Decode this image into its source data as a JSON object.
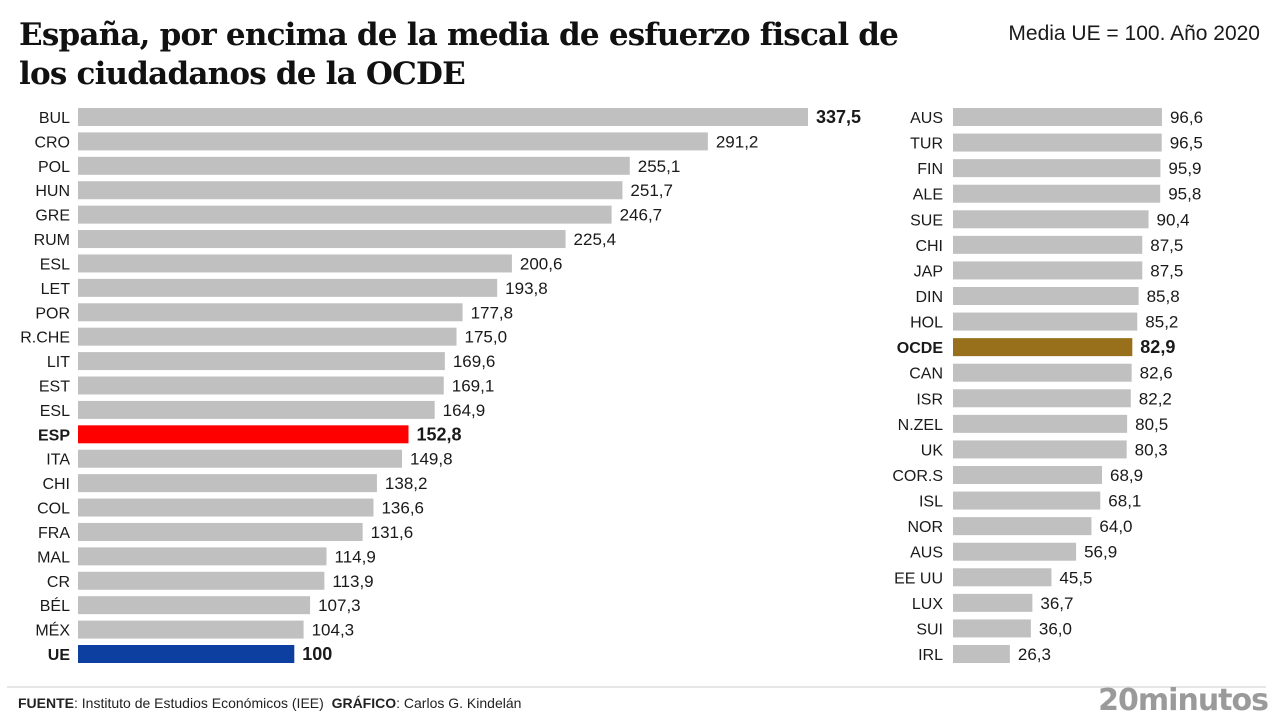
{
  "header": {
    "title": "España, por encima de la media de esfuerzo fiscal de los ciudadanos de la OCDE",
    "subtitle": "Media UE = 100. Año 2020"
  },
  "footer": {
    "source_label": "FUENTE",
    "source_text": ": Instituto de Estudios Económicos (IEE)",
    "graphic_label": "GRÁFICO",
    "graphic_text": ": Carlos G. Kindelán",
    "logo": "20minutos"
  },
  "colors": {
    "default_bar": "#c0c0c0",
    "spain": "#ff0000",
    "eu": "#0d3fa0",
    "oecd": "#98701b"
  },
  "chart_data": {
    "type": "bar",
    "orientation": "horizontal",
    "title": "España, por encima de la media de esfuerzo fiscal de los ciudadanos de la OCDE",
    "subtitle": "Media UE = 100. Año 2020",
    "xlabel": "",
    "ylabel": "",
    "grid": false,
    "legend": "none",
    "decimal_separator": ",",
    "panels": [
      {
        "name": "left",
        "categories": [
          "BUL",
          "CRO",
          "POL",
          "HUN",
          "GRE",
          "RUM",
          "ESL",
          "LET",
          "POR",
          "R.CHE",
          "LIT",
          "EST",
          "ESL",
          "ESP",
          "ITA",
          "CHI",
          "COL",
          "FRA",
          "MAL",
          "CR",
          "BÉL",
          "MÉX",
          "UE"
        ],
        "values": [
          337.5,
          291.2,
          255.1,
          251.7,
          246.7,
          225.4,
          200.6,
          193.8,
          177.8,
          175.0,
          169.6,
          169.1,
          164.9,
          152.8,
          149.8,
          138.2,
          136.6,
          131.6,
          114.9,
          113.9,
          107.3,
          104.3,
          100
        ],
        "labels": [
          "337,5",
          "291,2",
          "255,1",
          "251,7",
          "246,7",
          "225,4",
          "200,6",
          "193,8",
          "177,8",
          "175,0",
          "169,6",
          "169,1",
          "164,9",
          "152,8",
          "149,8",
          "138,2",
          "136,6",
          "131,6",
          "114,9",
          "113,9",
          "107,3",
          "104,3",
          "100"
        ],
        "highlight": {
          "0": "bold",
          "13": "spain",
          "22": "eu"
        }
      },
      {
        "name": "right",
        "categories": [
          "AUS",
          "TUR",
          "FIN",
          "ALE",
          "SUE",
          "CHI",
          "JAP",
          "DIN",
          "HOL",
          "OCDE",
          "CAN",
          "ISR",
          "N.ZEL",
          "UK",
          "COR.S",
          "ISL",
          "NOR",
          "AUS",
          "EE UU",
          "LUX",
          "SUI",
          "IRL"
        ],
        "values": [
          96.6,
          96.5,
          95.9,
          95.8,
          90.4,
          87.5,
          87.5,
          85.8,
          85.2,
          82.9,
          82.6,
          82.2,
          80.5,
          80.3,
          68.9,
          68.1,
          64.0,
          56.9,
          45.5,
          36.7,
          36.0,
          26.3
        ],
        "labels": [
          "96,6",
          "96,5",
          "95,9",
          "95,8",
          "90,4",
          "87,5",
          "87,5",
          "85,8",
          "85,2",
          "82,9",
          "82,6",
          "82,2",
          "80,5",
          "80,3",
          "68,9",
          "68,1",
          "64,0",
          "56,9",
          "45,5",
          "36,7",
          "36,0",
          "26,3"
        ],
        "highlight": {
          "9": "oecd"
        }
      }
    ]
  }
}
